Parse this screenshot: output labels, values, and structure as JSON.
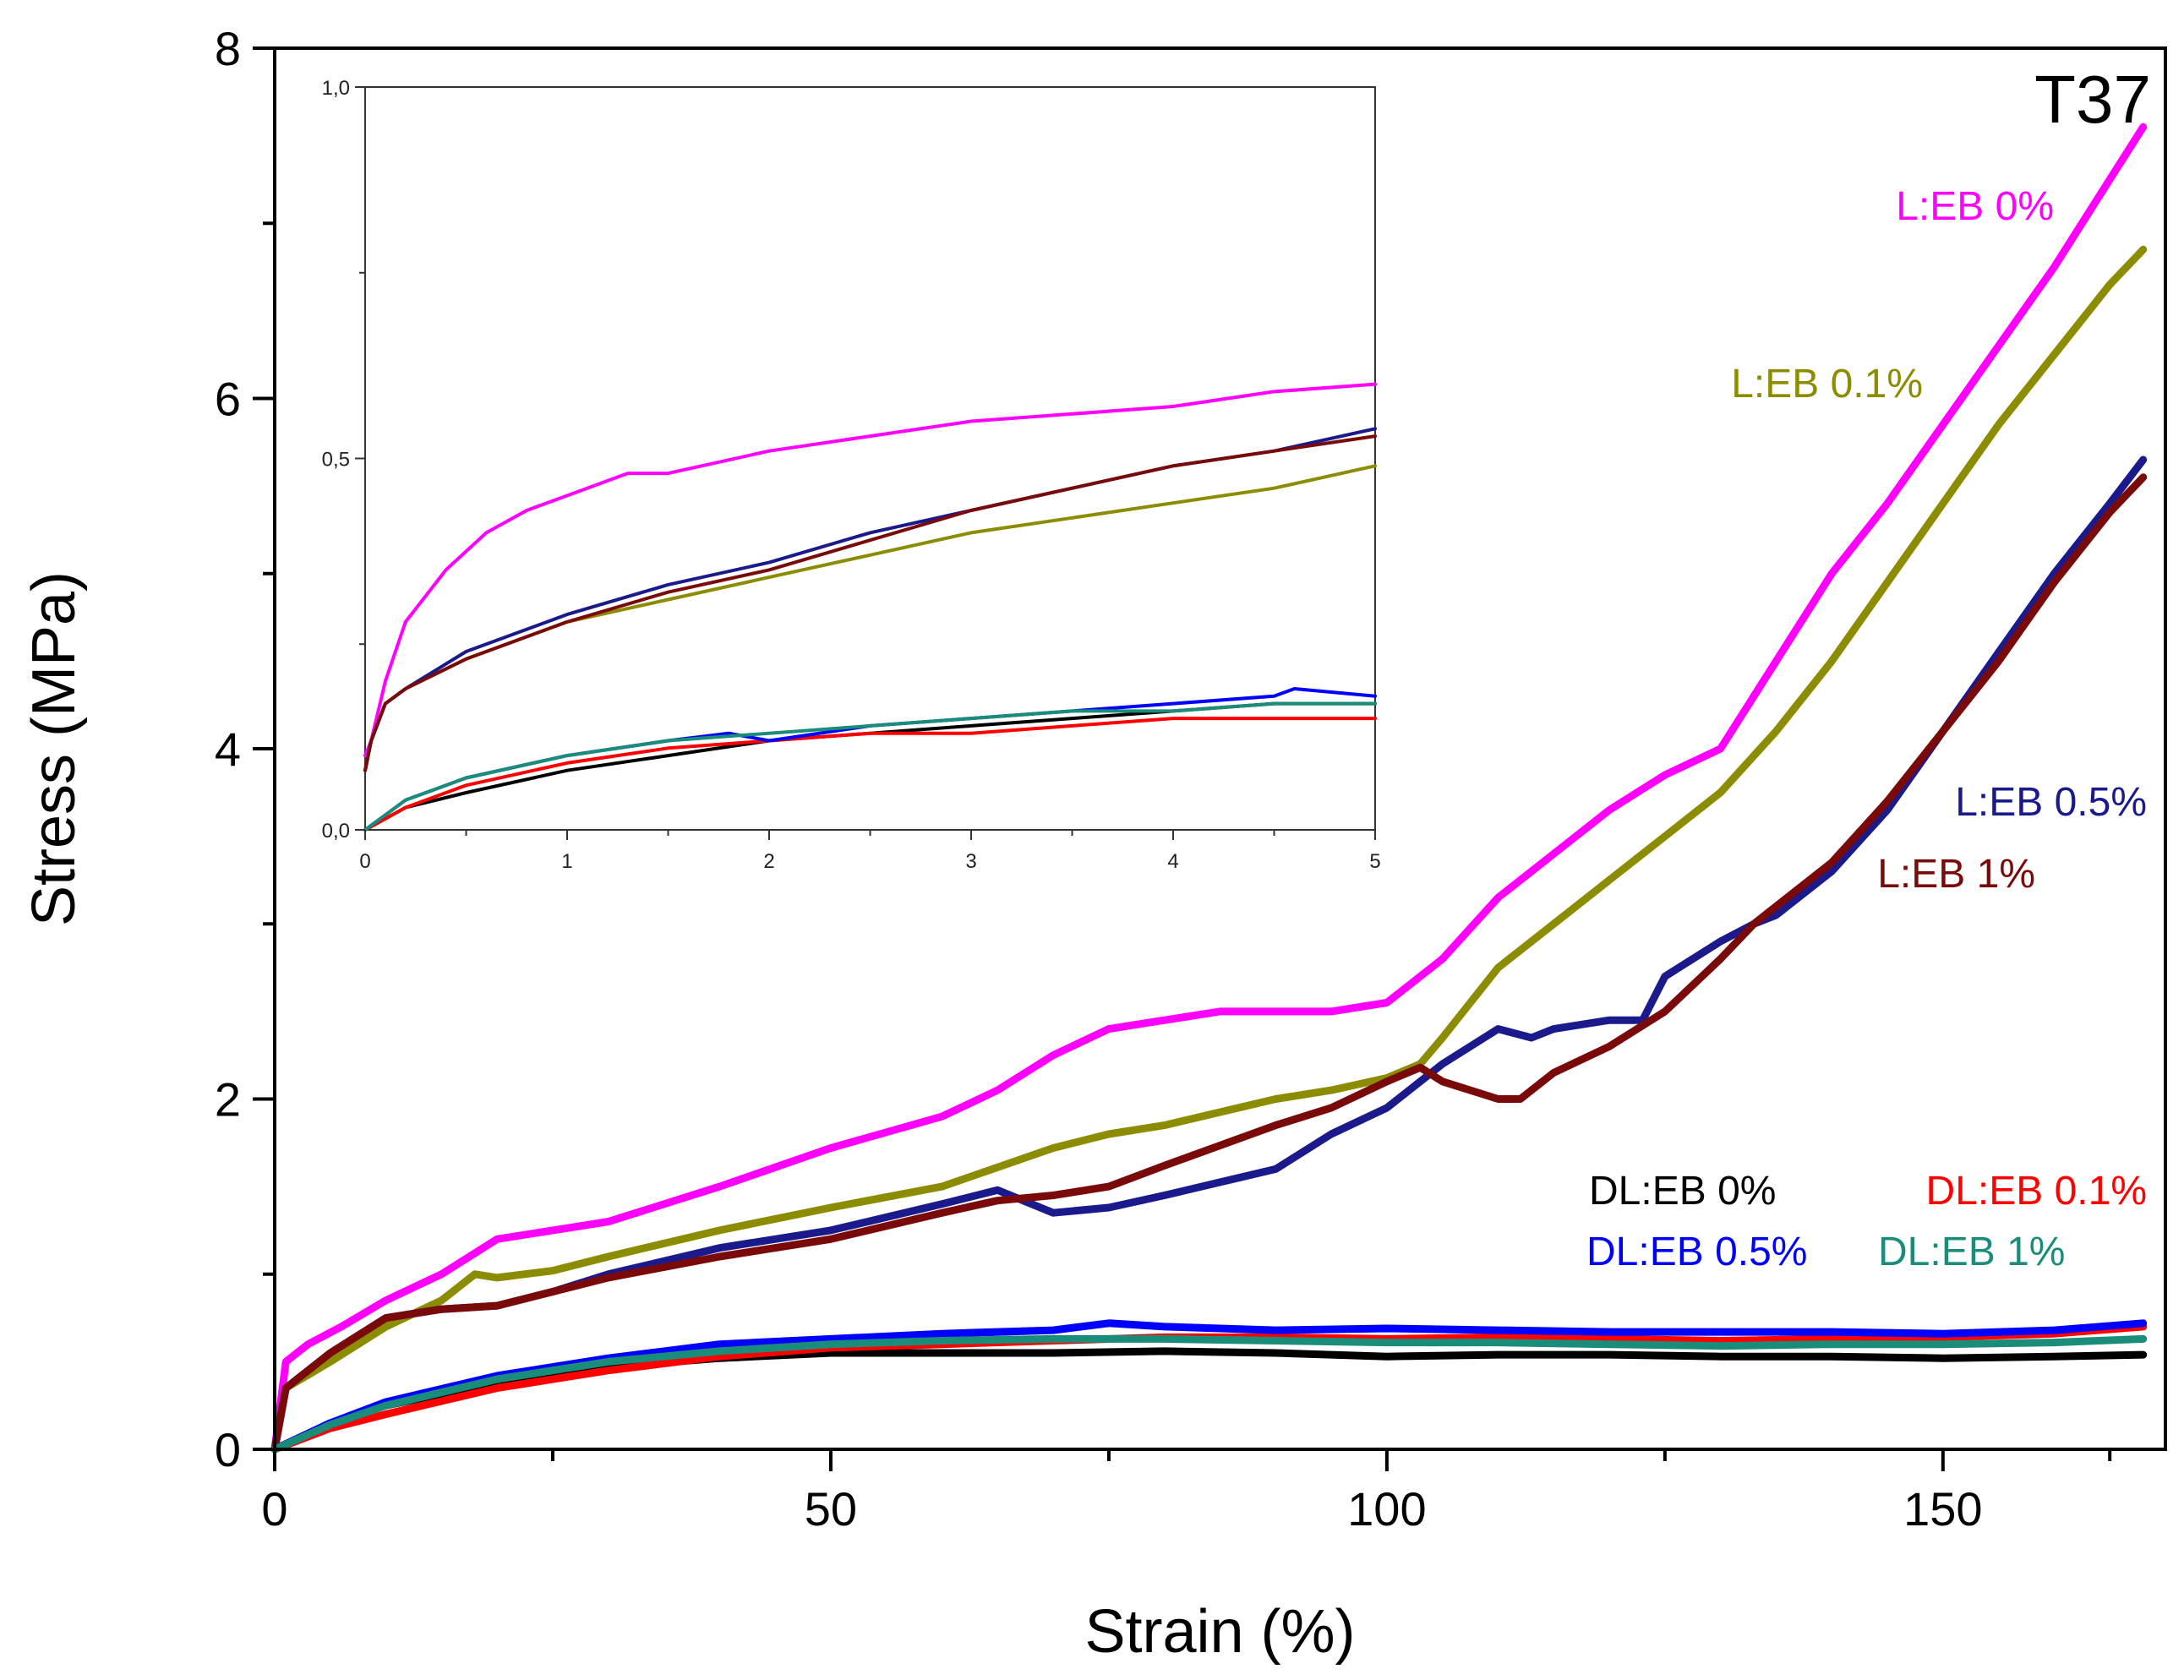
{
  "chart_data": [
    {
      "type": "line",
      "title": "T37",
      "xlabel": "Strain (%)",
      "ylabel": "Stress (MPa)",
      "xlim": [
        0,
        170
      ],
      "ylim": [
        0,
        8
      ],
      "xticks": [
        0,
        50,
        100,
        150
      ],
      "xtick_labels": [
        "0",
        "50",
        "100",
        "150"
      ],
      "yticks": [
        0,
        2,
        4,
        6,
        8
      ],
      "ytick_labels": [
        "0",
        "2",
        "4",
        "6",
        "8"
      ],
      "grid": false,
      "series": [
        {
          "name": "L:EB 0%",
          "color": "#ff00ff",
          "x": [
            0,
            1,
            3,
            6,
            10,
            15,
            20,
            25,
            30,
            40,
            50,
            60,
            65,
            70,
            75,
            80,
            85,
            90,
            95,
            100,
            105,
            110,
            115,
            120,
            125,
            130,
            135,
            140,
            145,
            150,
            155,
            160,
            165,
            168
          ],
          "y": [
            0,
            0.5,
            0.6,
            0.7,
            0.85,
            1.0,
            1.2,
            1.25,
            1.3,
            1.5,
            1.72,
            1.9,
            2.05,
            2.25,
            2.4,
            2.45,
            2.5,
            2.5,
            2.5,
            2.55,
            2.8,
            3.15,
            3.4,
            3.65,
            3.85,
            4.0,
            4.5,
            5.0,
            5.4,
            5.85,
            6.3,
            6.75,
            7.25,
            7.55
          ]
        },
        {
          "name": "L:EB 0.1%",
          "color": "#8c8c00",
          "x": [
            0,
            1,
            5,
            10,
            15,
            18,
            20,
            25,
            30,
            40,
            50,
            60,
            70,
            75,
            80,
            90,
            95,
            100,
            103,
            105,
            110,
            115,
            120,
            125,
            130,
            135,
            140,
            145,
            150,
            155,
            160,
            165,
            168
          ],
          "y": [
            0,
            0.35,
            0.5,
            0.7,
            0.85,
            1.0,
            0.98,
            1.02,
            1.1,
            1.25,
            1.38,
            1.5,
            1.72,
            1.8,
            1.85,
            2.0,
            2.05,
            2.12,
            2.2,
            2.35,
            2.75,
            3.0,
            3.25,
            3.5,
            3.75,
            4.1,
            4.5,
            4.95,
            5.4,
            5.85,
            6.25,
            6.65,
            6.85
          ]
        },
        {
          "name": "L:EB 0.5%",
          "color": "#1a1a8c",
          "x": [
            0,
            1,
            5,
            10,
            15,
            20,
            25,
            30,
            40,
            50,
            60,
            65,
            70,
            75,
            80,
            90,
            95,
            100,
            105,
            110,
            113,
            115,
            120,
            123,
            125,
            130,
            133,
            135,
            140,
            145,
            150,
            155,
            160,
            165,
            168
          ],
          "y": [
            0,
            0.35,
            0.55,
            0.75,
            0.8,
            0.82,
            0.9,
            1.0,
            1.15,
            1.25,
            1.4,
            1.48,
            1.35,
            1.38,
            1.45,
            1.6,
            1.8,
            1.95,
            2.2,
            2.4,
            2.35,
            2.4,
            2.45,
            2.45,
            2.7,
            2.9,
            3.0,
            3.05,
            3.3,
            3.65,
            4.1,
            4.55,
            5.0,
            5.4,
            5.65
          ]
        },
        {
          "name": "L:EB 1%",
          "color": "#7a0a0a",
          "x": [
            0,
            1,
            5,
            10,
            15,
            20,
            25,
            30,
            40,
            50,
            60,
            65,
            70,
            75,
            80,
            90,
            95,
            100,
            103,
            105,
            110,
            112,
            115,
            120,
            125,
            130,
            133,
            135,
            140,
            145,
            150,
            155,
            160,
            165,
            168
          ],
          "y": [
            0,
            0.35,
            0.55,
            0.75,
            0.8,
            0.82,
            0.9,
            0.98,
            1.1,
            1.2,
            1.35,
            1.42,
            1.45,
            1.5,
            1.62,
            1.85,
            1.95,
            2.1,
            2.18,
            2.1,
            2.0,
            2.0,
            2.15,
            2.3,
            2.5,
            2.8,
            3.0,
            3.1,
            3.35,
            3.7,
            4.1,
            4.5,
            4.95,
            5.35,
            5.55
          ]
        },
        {
          "name": "DL:EB 0%",
          "color": "#000000",
          "x": [
            0,
            5,
            10,
            20,
            30,
            40,
            50,
            60,
            70,
            80,
            90,
            100,
            110,
            120,
            130,
            140,
            150,
            160,
            168
          ],
          "y": [
            0,
            0.15,
            0.25,
            0.38,
            0.47,
            0.52,
            0.55,
            0.55,
            0.55,
            0.56,
            0.55,
            0.53,
            0.54,
            0.54,
            0.53,
            0.53,
            0.52,
            0.53,
            0.54
          ]
        },
        {
          "name": "DL:EB 0.1%",
          "color": "#ff0000",
          "x": [
            0,
            5,
            10,
            20,
            30,
            40,
            50,
            60,
            70,
            80,
            90,
            100,
            110,
            120,
            130,
            140,
            150,
            160,
            168
          ],
          "y": [
            0,
            0.12,
            0.2,
            0.35,
            0.45,
            0.53,
            0.58,
            0.6,
            0.62,
            0.64,
            0.64,
            0.63,
            0.64,
            0.63,
            0.62,
            0.63,
            0.64,
            0.66,
            0.7
          ]
        },
        {
          "name": "DL:EB 0.5%",
          "color": "#0000ff",
          "x": [
            0,
            5,
            10,
            20,
            30,
            40,
            50,
            60,
            70,
            75,
            80,
            90,
            100,
            110,
            120,
            130,
            140,
            150,
            160,
            168
          ],
          "y": [
            0,
            0.15,
            0.27,
            0.42,
            0.52,
            0.6,
            0.63,
            0.66,
            0.68,
            0.72,
            0.7,
            0.68,
            0.69,
            0.68,
            0.67,
            0.67,
            0.67,
            0.66,
            0.68,
            0.72
          ]
        },
        {
          "name": "DL:EB 1%",
          "color": "#1a8c7a",
          "x": [
            0,
            5,
            10,
            20,
            30,
            40,
            50,
            60,
            70,
            80,
            90,
            100,
            110,
            120,
            130,
            140,
            150,
            160,
            168
          ],
          "y": [
            0,
            0.14,
            0.25,
            0.4,
            0.5,
            0.56,
            0.6,
            0.62,
            0.63,
            0.63,
            0.62,
            0.61,
            0.61,
            0.6,
            0.59,
            0.6,
            0.6,
            0.61,
            0.63
          ]
        }
      ],
      "annotations": [
        "T37"
      ]
    },
    {
      "type": "line",
      "title": "",
      "xlabel": "",
      "ylabel": "",
      "xlim": [
        0,
        5
      ],
      "ylim": [
        0,
        1
      ],
      "xticks": [
        0,
        1,
        2,
        3,
        4,
        5
      ],
      "xtick_labels": [
        "0",
        "1",
        "2",
        "3",
        "4",
        "5"
      ],
      "yticks": [
        0,
        0.5,
        1
      ],
      "ytick_labels": [
        "0,0",
        "0,5",
        "1,0"
      ],
      "grid": false,
      "series": [
        {
          "name": "L:EB 0%",
          "color": "#ff00ff",
          "x": [
            0,
            0.03,
            0.1,
            0.2,
            0.4,
            0.6,
            0.8,
            1.0,
            1.3,
            1.5,
            2.0,
            2.5,
            3.0,
            3.5,
            4.0,
            4.5,
            5.0
          ],
          "y": [
            0.1,
            0.12,
            0.2,
            0.28,
            0.35,
            0.4,
            0.43,
            0.45,
            0.48,
            0.48,
            0.51,
            0.53,
            0.55,
            0.56,
            0.57,
            0.59,
            0.6
          ]
        },
        {
          "name": "L:EB 0.1%",
          "color": "#8c8c00",
          "x": [
            0,
            0.03,
            0.1,
            0.2,
            0.5,
            1.0,
            1.5,
            2.0,
            2.5,
            3.0,
            3.5,
            4.0,
            4.5,
            5.0
          ],
          "y": [
            0.08,
            0.12,
            0.17,
            0.19,
            0.23,
            0.28,
            0.31,
            0.34,
            0.37,
            0.4,
            0.42,
            0.44,
            0.46,
            0.49
          ]
        },
        {
          "name": "L:EB 0.5%",
          "color": "#1a1a8c",
          "x": [
            0,
            0.03,
            0.1,
            0.2,
            0.5,
            1.0,
            1.5,
            2.0,
            2.5,
            3.0,
            3.5,
            4.0,
            4.5,
            5.0
          ],
          "y": [
            0.08,
            0.12,
            0.17,
            0.19,
            0.24,
            0.29,
            0.33,
            0.36,
            0.4,
            0.43,
            0.46,
            0.49,
            0.51,
            0.54
          ]
        },
        {
          "name": "L:EB 1%",
          "color": "#7a0a0a",
          "x": [
            0,
            0.03,
            0.1,
            0.2,
            0.5,
            1.0,
            1.5,
            2.0,
            2.5,
            3.0,
            3.5,
            4.0,
            4.5,
            5.0
          ],
          "y": [
            0.08,
            0.12,
            0.17,
            0.19,
            0.23,
            0.28,
            0.32,
            0.35,
            0.39,
            0.43,
            0.46,
            0.49,
            0.51,
            0.53
          ]
        },
        {
          "name": "DL:EB 0%",
          "color": "#000000",
          "x": [
            0,
            0.2,
            0.5,
            1.0,
            1.5,
            2.0,
            2.5,
            3.0,
            3.5,
            4.0,
            4.5,
            5.0
          ],
          "y": [
            0,
            0.03,
            0.05,
            0.08,
            0.1,
            0.12,
            0.13,
            0.14,
            0.15,
            0.16,
            0.17,
            0.17
          ]
        },
        {
          "name": "DL:EB 0.1%",
          "color": "#ff0000",
          "x": [
            0,
            0.2,
            0.5,
            1.0,
            1.5,
            2.0,
            2.5,
            3.0,
            3.5,
            4.0,
            4.5,
            5.0
          ],
          "y": [
            0,
            0.03,
            0.06,
            0.09,
            0.11,
            0.12,
            0.13,
            0.13,
            0.14,
            0.15,
            0.15,
            0.15
          ]
        },
        {
          "name": "DL:EB 0.5%",
          "color": "#0000ff",
          "x": [
            0,
            0.2,
            0.5,
            1.0,
            1.5,
            1.8,
            2.0,
            2.5,
            3.0,
            3.5,
            4.0,
            4.5,
            4.6,
            5.0
          ],
          "y": [
            0,
            0.04,
            0.07,
            0.1,
            0.12,
            0.13,
            0.12,
            0.14,
            0.15,
            0.16,
            0.17,
            0.18,
            0.19,
            0.18
          ]
        },
        {
          "name": "DL:EB 1%",
          "color": "#1a8c7a",
          "x": [
            0,
            0.2,
            0.5,
            1.0,
            1.5,
            2.0,
            2.5,
            3.0,
            3.5,
            4.0,
            4.5,
            5.0
          ],
          "y": [
            0,
            0.04,
            0.07,
            0.1,
            0.12,
            0.13,
            0.14,
            0.15,
            0.16,
            0.16,
            0.17,
            0.17
          ]
        }
      ]
    }
  ],
  "legend_labels": [
    {
      "text": "L:EB 0%",
      "color": "#ff00ff"
    },
    {
      "text": "L:EB 0.1%",
      "color": "#8c8c00"
    },
    {
      "text": "L:EB 0.5%",
      "color": "#1a1a8c"
    },
    {
      "text": "L:EB 1%",
      "color": "#7a0a0a"
    },
    {
      "text": "DL:EB 0%",
      "color": "#000000"
    },
    {
      "text": "DL:EB 0.1%",
      "color": "#ff0000"
    },
    {
      "text": "DL:EB 0.5%",
      "color": "#0000ff"
    },
    {
      "text": "DL:EB 1%",
      "color": "#1a8c7a"
    }
  ]
}
